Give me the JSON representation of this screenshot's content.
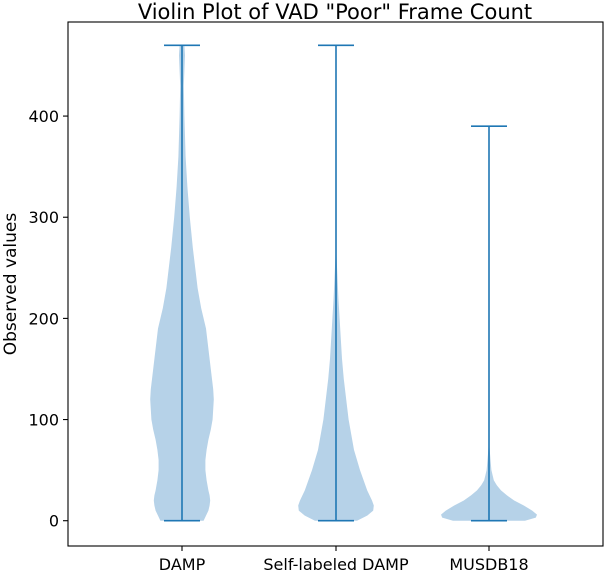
{
  "chart_data": {
    "type": "violin",
    "title": "Violin Plot of VAD \"Poor\" Frame Count",
    "xlabel": "",
    "ylabel": "Observed values",
    "ylim": [
      -25,
      493
    ],
    "yticks": [
      0,
      100,
      200,
      300,
      400
    ],
    "categories": [
      "DAMP",
      "Self-labeled DAMP",
      "MUSDB18"
    ],
    "grid": false,
    "colors": {
      "violin_fill": "#b6d2e8",
      "whisker": "#1f77b4",
      "axis": "#000000"
    },
    "violins": [
      {
        "name": "DAMP",
        "min": 0,
        "max": 470,
        "density_profile": [
          [
            0,
            0.36
          ],
          [
            5,
            0.4
          ],
          [
            10,
            0.44
          ],
          [
            15,
            0.46
          ],
          [
            20,
            0.47
          ],
          [
            25,
            0.46
          ],
          [
            30,
            0.44
          ],
          [
            40,
            0.41
          ],
          [
            50,
            0.39
          ],
          [
            60,
            0.39
          ],
          [
            70,
            0.41
          ],
          [
            80,
            0.44
          ],
          [
            90,
            0.48
          ],
          [
            100,
            0.51
          ],
          [
            110,
            0.52
          ],
          [
            120,
            0.53
          ],
          [
            130,
            0.52
          ],
          [
            140,
            0.5
          ],
          [
            150,
            0.48
          ],
          [
            160,
            0.46
          ],
          [
            170,
            0.44
          ],
          [
            180,
            0.42
          ],
          [
            190,
            0.4
          ],
          [
            200,
            0.36
          ],
          [
            210,
            0.32
          ],
          [
            220,
            0.29
          ],
          [
            230,
            0.26
          ],
          [
            250,
            0.22
          ],
          [
            270,
            0.18
          ],
          [
            300,
            0.13
          ],
          [
            330,
            0.09
          ],
          [
            360,
            0.06
          ],
          [
            400,
            0.04
          ],
          [
            430,
            0.03
          ],
          [
            460,
            0.05
          ],
          [
            470,
            0.04
          ]
        ]
      },
      {
        "name": "Self-labeled DAMP",
        "min": 0,
        "max": 470,
        "density_profile": [
          [
            0,
            0.35
          ],
          [
            5,
            0.52
          ],
          [
            10,
            0.62
          ],
          [
            15,
            0.63
          ],
          [
            20,
            0.6
          ],
          [
            30,
            0.52
          ],
          [
            40,
            0.46
          ],
          [
            50,
            0.4
          ],
          [
            60,
            0.35
          ],
          [
            70,
            0.3
          ],
          [
            80,
            0.27
          ],
          [
            90,
            0.24
          ],
          [
            100,
            0.21
          ],
          [
            120,
            0.17
          ],
          [
            140,
            0.13
          ],
          [
            160,
            0.1
          ],
          [
            180,
            0.08
          ],
          [
            200,
            0.06
          ],
          [
            220,
            0.04
          ],
          [
            240,
            0.025
          ],
          [
            260,
            0.01
          ],
          [
            280,
            0.0
          ]
        ]
      },
      {
        "name": "MUSDB18",
        "min": 0,
        "max": 390,
        "density_profile": [
          [
            0,
            0.6
          ],
          [
            3,
            0.78
          ],
          [
            6,
            0.8
          ],
          [
            10,
            0.72
          ],
          [
            15,
            0.58
          ],
          [
            20,
            0.42
          ],
          [
            25,
            0.3
          ],
          [
            30,
            0.2
          ],
          [
            35,
            0.13
          ],
          [
            40,
            0.08
          ],
          [
            50,
            0.04
          ],
          [
            60,
            0.025
          ],
          [
            70,
            0.012
          ],
          [
            80,
            0.0
          ]
        ]
      }
    ]
  }
}
